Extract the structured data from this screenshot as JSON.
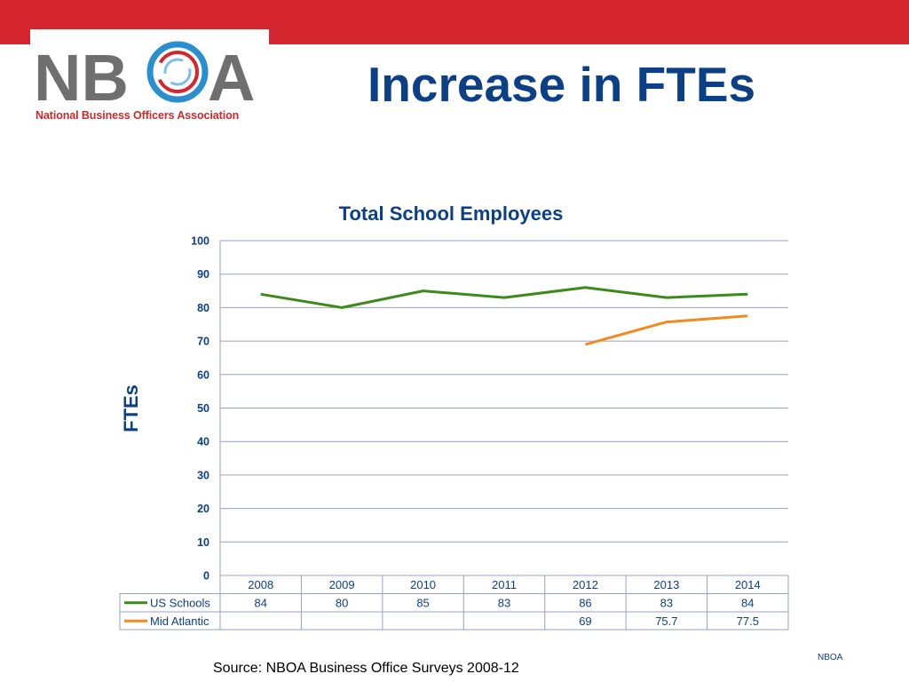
{
  "slide": {
    "title": "Increase in FTEs",
    "source": "Source:  NBOA Business Office Surveys 2008-12",
    "footer": "NBOA"
  },
  "logo": {
    "letters_left": "NB",
    "letter_a": "A",
    "subtitle": "National Business Officers Association"
  },
  "colors": {
    "top_band": "#d5262f",
    "title": "#0b3f86",
    "us_schools": "#3b8a1a",
    "mid_atlantic": "#f28a1e",
    "gridline": "#9a9fc8"
  },
  "chart_data": {
    "type": "line",
    "title": "Total School Employees",
    "ylabel": "FTEs",
    "xlabel": "",
    "categories": [
      "2008",
      "2009",
      "2010",
      "2011",
      "2012",
      "2013",
      "2014"
    ],
    "ylim": [
      0,
      100
    ],
    "yticks": [
      0,
      10,
      20,
      30,
      40,
      50,
      60,
      70,
      80,
      90,
      100
    ],
    "grid": true,
    "legend": "data-table",
    "series": [
      {
        "name": "US Schools",
        "color": "#3b8a1a",
        "values": [
          84,
          80,
          85,
          83,
          86,
          83,
          84
        ]
      },
      {
        "name": "Mid Atlantic",
        "color": "#f28a1e",
        "values": [
          null,
          null,
          null,
          null,
          69,
          75.7,
          77.5
        ]
      }
    ]
  }
}
